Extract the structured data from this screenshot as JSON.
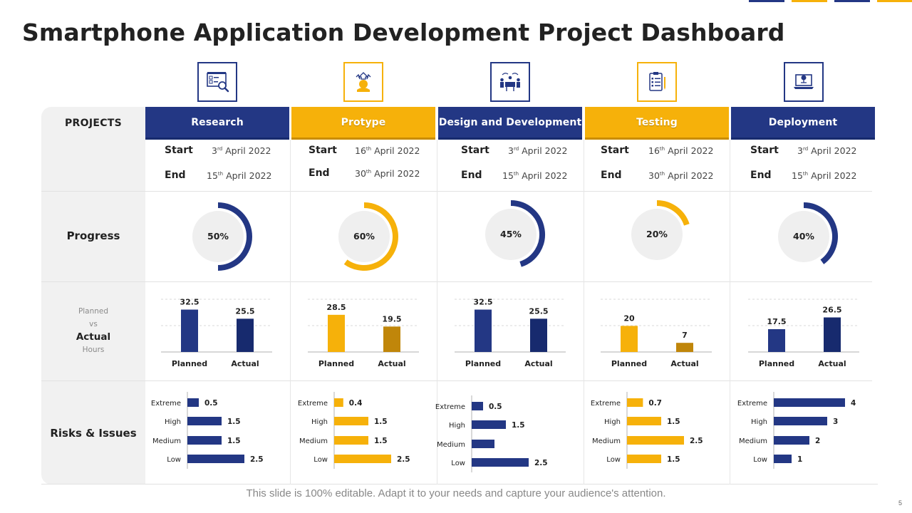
{
  "title": "Smartphone Application Development Project Dashboard",
  "colors": {
    "blue": "#233784",
    "blue_dark": "#172a6e",
    "yellow": "#f6b10a",
    "yellow_dark": "#c0860a",
    "light_gray": "#f1f1f1"
  },
  "row_labels": {
    "projects": "PROJECTS",
    "progress": "Progress",
    "hours_top": "Planned",
    "hours_vs": "vs",
    "hours_main": "Actual",
    "hours_unit": "Hours",
    "risks": "Risks & Issues"
  },
  "date_keys": {
    "start": "Start",
    "end": "End"
  },
  "bar_labels": [
    "Planned",
    "Actual"
  ],
  "risk_labels": [
    "Extreme",
    "High",
    "Medium",
    "Low"
  ],
  "stages": [
    {
      "name": "Research",
      "theme": "blue",
      "icon": "presentation-search-icon",
      "start_day": "3",
      "start_sup": "rd",
      "start_rest": " April 2022",
      "end_day": "15",
      "end_sup": "th",
      "end_rest": " April 2022",
      "progress": 50,
      "progress_label": "50%",
      "planned": 32.5,
      "actual": 25.5,
      "planned_label": "32.5",
      "actual_label": "25.5",
      "risks": [
        0.5,
        1.5,
        1.5,
        2.5
      ],
      "risk_value_labels": [
        "0.5",
        "1.5",
        "1.5",
        "2.5"
      ]
    },
    {
      "name": "Protype",
      "theme": "yellow",
      "icon": "idea-hand-icon",
      "start_day": "16",
      "start_sup": "th",
      "start_rest": " April 2022",
      "end_day": "30",
      "end_sup": "th",
      "end_rest": " April 2022",
      "progress": 60,
      "progress_label": "60%",
      "planned": 28.5,
      "actual": 19.5,
      "planned_label": "28.5",
      "actual_label": "19.5",
      "risks": [
        0.4,
        1.5,
        1.5,
        2.5
      ],
      "risk_value_labels": [
        "0.4",
        "1.5",
        "1.5",
        "2.5"
      ]
    },
    {
      "name": "Design and Development",
      "theme": "blue",
      "icon": "team-meeting-icon",
      "start_day": "3",
      "start_sup": "rd",
      "start_rest": " April 2022",
      "end_day": "15",
      "end_sup": "th",
      "end_rest": " April 2022",
      "progress": 45,
      "progress_label": "45%",
      "planned": 32.5,
      "actual": 25.5,
      "planned_label": "32.5",
      "actual_label": "25.5",
      "risks": [
        0.5,
        1.5,
        1.0,
        2.5
      ],
      "risk_value_labels": [
        "0.5",
        "1.5",
        "",
        "2.5"
      ]
    },
    {
      "name": "Testing",
      "theme": "yellow",
      "icon": "clipboard-checklist-icon",
      "start_day": "16",
      "start_sup": "th",
      "start_rest": " April 2022",
      "end_day": "30",
      "end_sup": "th",
      "end_rest": " April 2022",
      "progress": 20,
      "progress_label": "20%",
      "planned": 20,
      "actual": 7,
      "planned_label": "20",
      "actual_label": "7",
      "risks": [
        0.7,
        1.5,
        2.5,
        1.5
      ],
      "risk_value_labels": [
        "0.7",
        "1.5",
        "2.5",
        "1.5"
      ]
    },
    {
      "name": "Deployment",
      "theme": "blue",
      "icon": "laptop-deploy-icon",
      "start_day": "3",
      "start_sup": "rd",
      "start_rest": " April 2022",
      "end_day": "15",
      "end_sup": "th",
      "end_rest": " April 2022",
      "progress": 40,
      "progress_label": "40%",
      "planned": 17.5,
      "actual": 26.5,
      "planned_label": "17.5",
      "actual_label": "26.5",
      "risks": [
        4,
        3,
        2,
        1
      ],
      "risk_value_labels": [
        "4",
        "3",
        "2",
        "1"
      ]
    }
  ],
  "footer": "This slide is 100% editable. Adapt it to your needs and capture your audience's attention.",
  "page_number": "5"
}
